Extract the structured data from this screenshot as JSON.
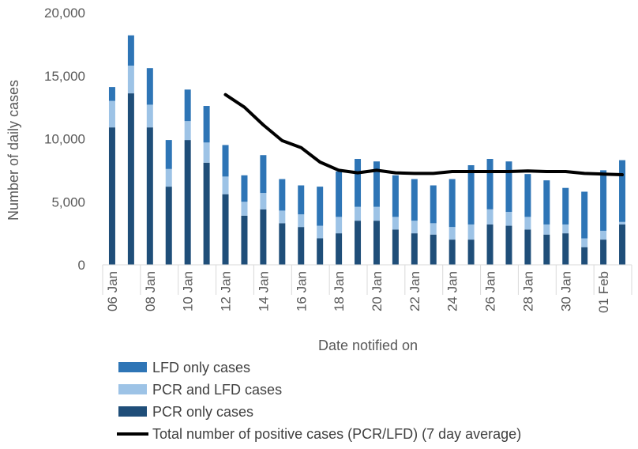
{
  "chart_data": {
    "type": "bar",
    "stacked": true,
    "title": "",
    "xlabel": "Date notified on",
    "ylabel": "Number of daily cases",
    "ylim": [
      0,
      20000
    ],
    "yticks": [
      "0",
      "5,000",
      "10,000",
      "15,000",
      "20,000"
    ],
    "x_tick_labels": [
      "06 Jan",
      "08 Jan",
      "10 Jan",
      "12 Jan",
      "14 Jan",
      "16 Jan",
      "18 Jan",
      "20 Jan",
      "22 Jan",
      "24 Jan",
      "26 Jan",
      "28 Jan",
      "30 Jan",
      "01 Feb"
    ],
    "x": [
      "06 Jan",
      "07 Jan",
      "08 Jan",
      "09 Jan",
      "10 Jan",
      "11 Jan",
      "12 Jan",
      "13 Jan",
      "14 Jan",
      "15 Jan",
      "16 Jan",
      "17 Jan",
      "18 Jan",
      "19 Jan",
      "20 Jan",
      "21 Jan",
      "22 Jan",
      "23 Jan",
      "24 Jan",
      "25 Jan",
      "26 Jan",
      "27 Jan",
      "28 Jan",
      "29 Jan",
      "30 Jan",
      "31 Jan",
      "01 Feb",
      "02 Feb"
    ],
    "series": [
      {
        "name": "PCR only cases",
        "color": "#1f4e79",
        "values": [
          10900,
          13600,
          10900,
          6200,
          9900,
          8100,
          5600,
          3900,
          4400,
          3300,
          3000,
          2100,
          2500,
          3500,
          3500,
          2800,
          2500,
          2400,
          2000,
          2000,
          3200,
          3100,
          2800,
          2400,
          2500,
          1400,
          2000,
          3200
        ]
      },
      {
        "name": "PCR and LFD cases",
        "color": "#9dc3e6",
        "values": [
          2100,
          2200,
          1800,
          1400,
          1500,
          1600,
          1400,
          1100,
          1300,
          1000,
          1000,
          1000,
          1300,
          1100,
          1100,
          1000,
          1000,
          900,
          1000,
          1200,
          1200,
          1100,
          1000,
          800,
          700,
          700,
          700,
          200
        ]
      },
      {
        "name": "LFD only cases",
        "color": "#2e75b6",
        "values": [
          1100,
          2400,
          2900,
          2300,
          2500,
          2900,
          2500,
          2100,
          3000,
          2500,
          2300,
          3100,
          3600,
          3800,
          3600,
          3300,
          3300,
          3000,
          3800,
          4700,
          4000,
          4000,
          3400,
          3500,
          2900,
          3700,
          4800,
          4900
        ]
      }
    ],
    "line": {
      "name": "Total number of positive cases (PCR/LFD) (7 day average)",
      "color": "#000000",
      "values": [
        null,
        null,
        null,
        null,
        null,
        null,
        13500,
        12500,
        11100,
        9850,
        9300,
        8150,
        7500,
        7300,
        7500,
        7300,
        7250,
        7250,
        7400,
        7400,
        7400,
        7400,
        7450,
        7400,
        7400,
        7250,
        7200,
        7150
      ]
    },
    "legend": {
      "position": "bottom-left",
      "order": [
        "LFD only cases",
        "PCR and LFD cases",
        "PCR only cases",
        "Total number of positive cases (PCR/LFD) (7 day average)"
      ]
    },
    "grid": false
  }
}
